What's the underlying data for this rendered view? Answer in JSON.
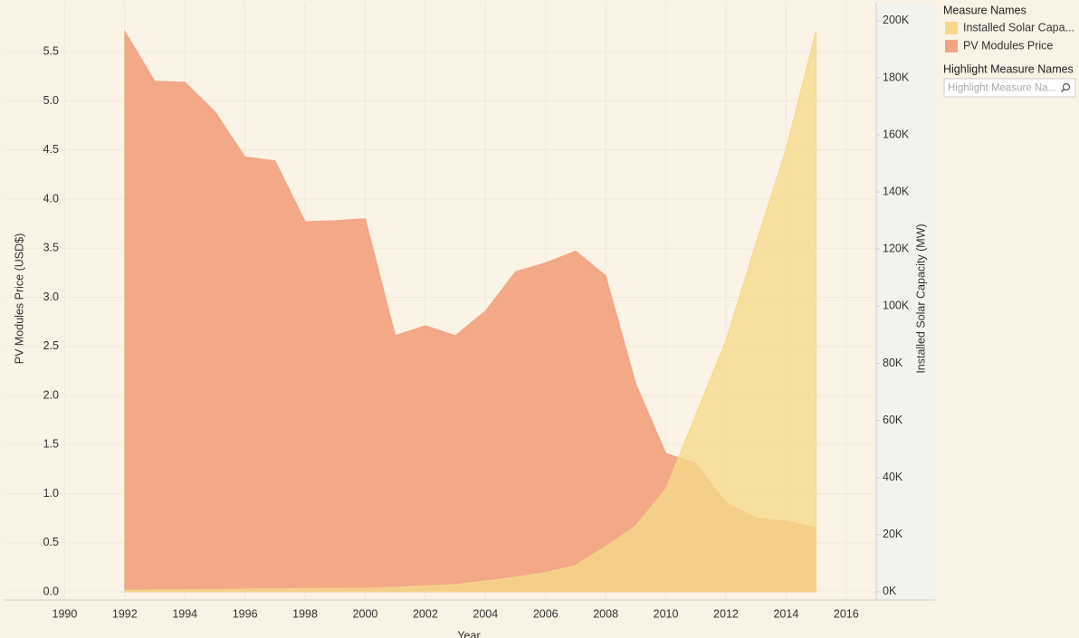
{
  "chart_data": {
    "type": "area",
    "x_label": "Year",
    "y_label": "PV Modules Price (USD$)",
    "y2_label": "Installed Solar Capacity (MW)",
    "x": [
      1992,
      1993,
      1994,
      1995,
      1996,
      1997,
      1998,
      1999,
      2000,
      2001,
      2002,
      2003,
      2004,
      2005,
      2006,
      2007,
      2008,
      2009,
      2010,
      2011,
      2012,
      2013,
      2014,
      2015
    ],
    "series": [
      {
        "name": "PV Modules Price",
        "color": "#f2a482",
        "values": [
          5.71,
          5.2,
          5.19,
          4.89,
          4.43,
          4.39,
          3.77,
          3.78,
          3.8,
          2.61,
          2.71,
          2.61,
          2.86,
          3.26,
          3.35,
          3.47,
          3.22,
          2.12,
          1.41,
          1.31,
          0.91,
          0.75,
          0.72,
          0.65
        ]
      },
      {
        "name": "Installed Solar Capa...",
        "color": "#f5d88a",
        "axis": "y2",
        "values": [
          500,
          600,
          700,
          800,
          900,
          1000,
          1100,
          1150,
          1200,
          1500,
          2000,
          2500,
          3700,
          5100,
          6700,
          9200,
          15800,
          23000,
          36000,
          62000,
          88000,
          122000,
          155000,
          196500
        ]
      }
    ],
    "xlim": [
      1988,
      2017
    ],
    "xticks": [
      1990,
      1992,
      1994,
      1996,
      1998,
      2000,
      2002,
      2004,
      2006,
      2008,
      2010,
      2012,
      2014,
      2016
    ],
    "ylim": [
      -0.083,
      6.0
    ],
    "yticks": [
      {
        "value": 0,
        "label": "0.0"
      },
      0.5,
      {
        "value": 1,
        "label": "1.0"
      },
      1.5,
      {
        "value": 2,
        "label": "2.0"
      },
      2.5,
      {
        "value": 3,
        "label": "3.0"
      },
      3.5,
      {
        "value": 4,
        "label": "4.0"
      },
      4.5,
      {
        "value": 5,
        "label": "5.0"
      },
      5.5
    ],
    "y2lim": [
      -2900,
      206300
    ],
    "y2ticks": [
      {
        "value": 0,
        "label": "0K"
      },
      {
        "value": 20000,
        "label": "20K"
      },
      {
        "value": 40000,
        "label": "40K"
      },
      {
        "value": 60000,
        "label": "60K"
      },
      {
        "value": 80000,
        "label": "80K"
      },
      {
        "value": 100000,
        "label": "100K"
      },
      {
        "value": 120000,
        "label": "120K"
      },
      {
        "value": 140000,
        "label": "140K"
      },
      {
        "value": 160000,
        "label": "160K"
      },
      {
        "value": 180000,
        "label": "180K"
      },
      {
        "value": 200000,
        "label": "200K"
      }
    ],
    "grid": true,
    "legend_title": "Measure Names",
    "highlight_title": "Highlight Measure Names",
    "highlight_placeholder": "Highlight Measure Na..."
  }
}
